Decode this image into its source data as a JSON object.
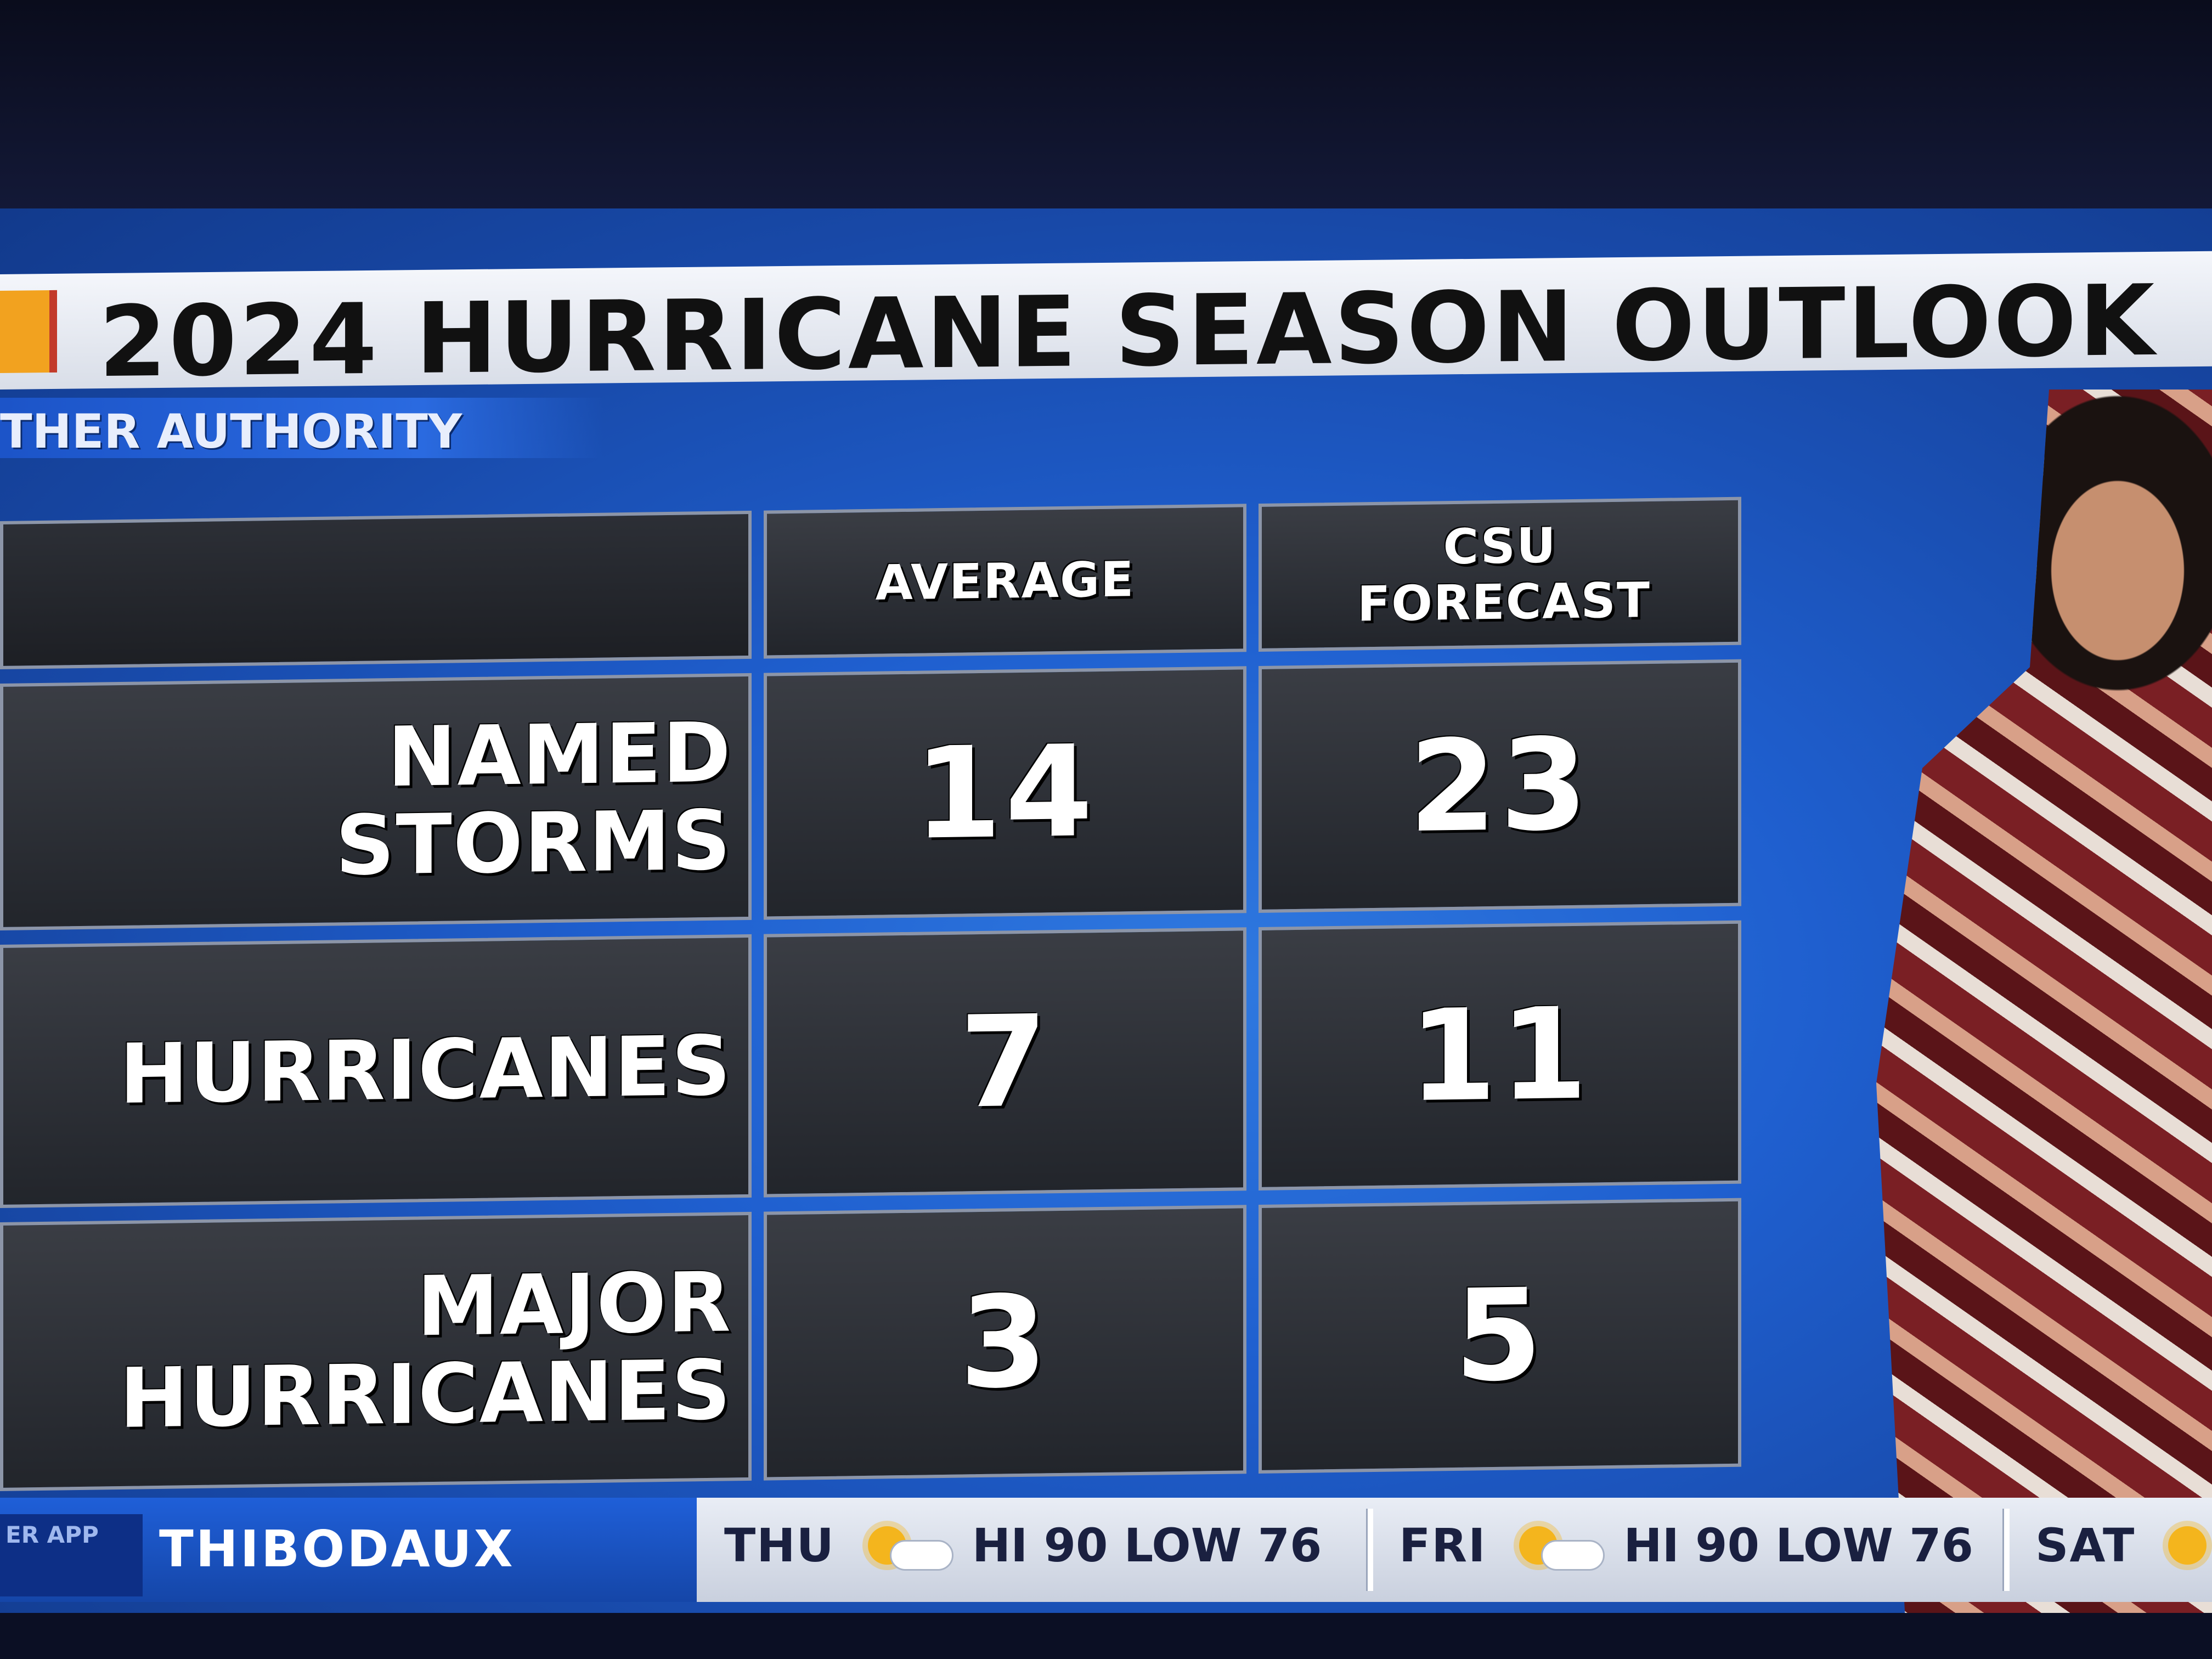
{
  "title": "2024 HURRICANE SEASON OUTLOOK",
  "subtitle": "THER AUTHORITY",
  "table": {
    "headers": [
      "AVERAGE",
      "CSU FORECAST"
    ],
    "rows": [
      {
        "label": "NAMED STORMS",
        "average": "14",
        "csu": "23"
      },
      {
        "label": "HURRICANES",
        "average": "7",
        "csu": "11"
      },
      {
        "label": "MAJOR HURRICANES",
        "average": "3",
        "csu": "5"
      }
    ]
  },
  "ticker": {
    "app_tag": "ER APP",
    "location": "THIBODAUX",
    "forecast": [
      {
        "day": "THU",
        "text": "HI 90 LOW 76",
        "icon": "partly-cloudy-icon"
      },
      {
        "day": "FRI",
        "text": "HI 90 LOW 76",
        "icon": "partly-cloudy-icon"
      },
      {
        "day": "SAT",
        "icon": "partly-cloudy-icon"
      }
    ]
  },
  "colors": {
    "background_blue": "#1f5fcf",
    "cell_dark": "#2c2f36",
    "logo_orange": "#f2a21f"
  }
}
